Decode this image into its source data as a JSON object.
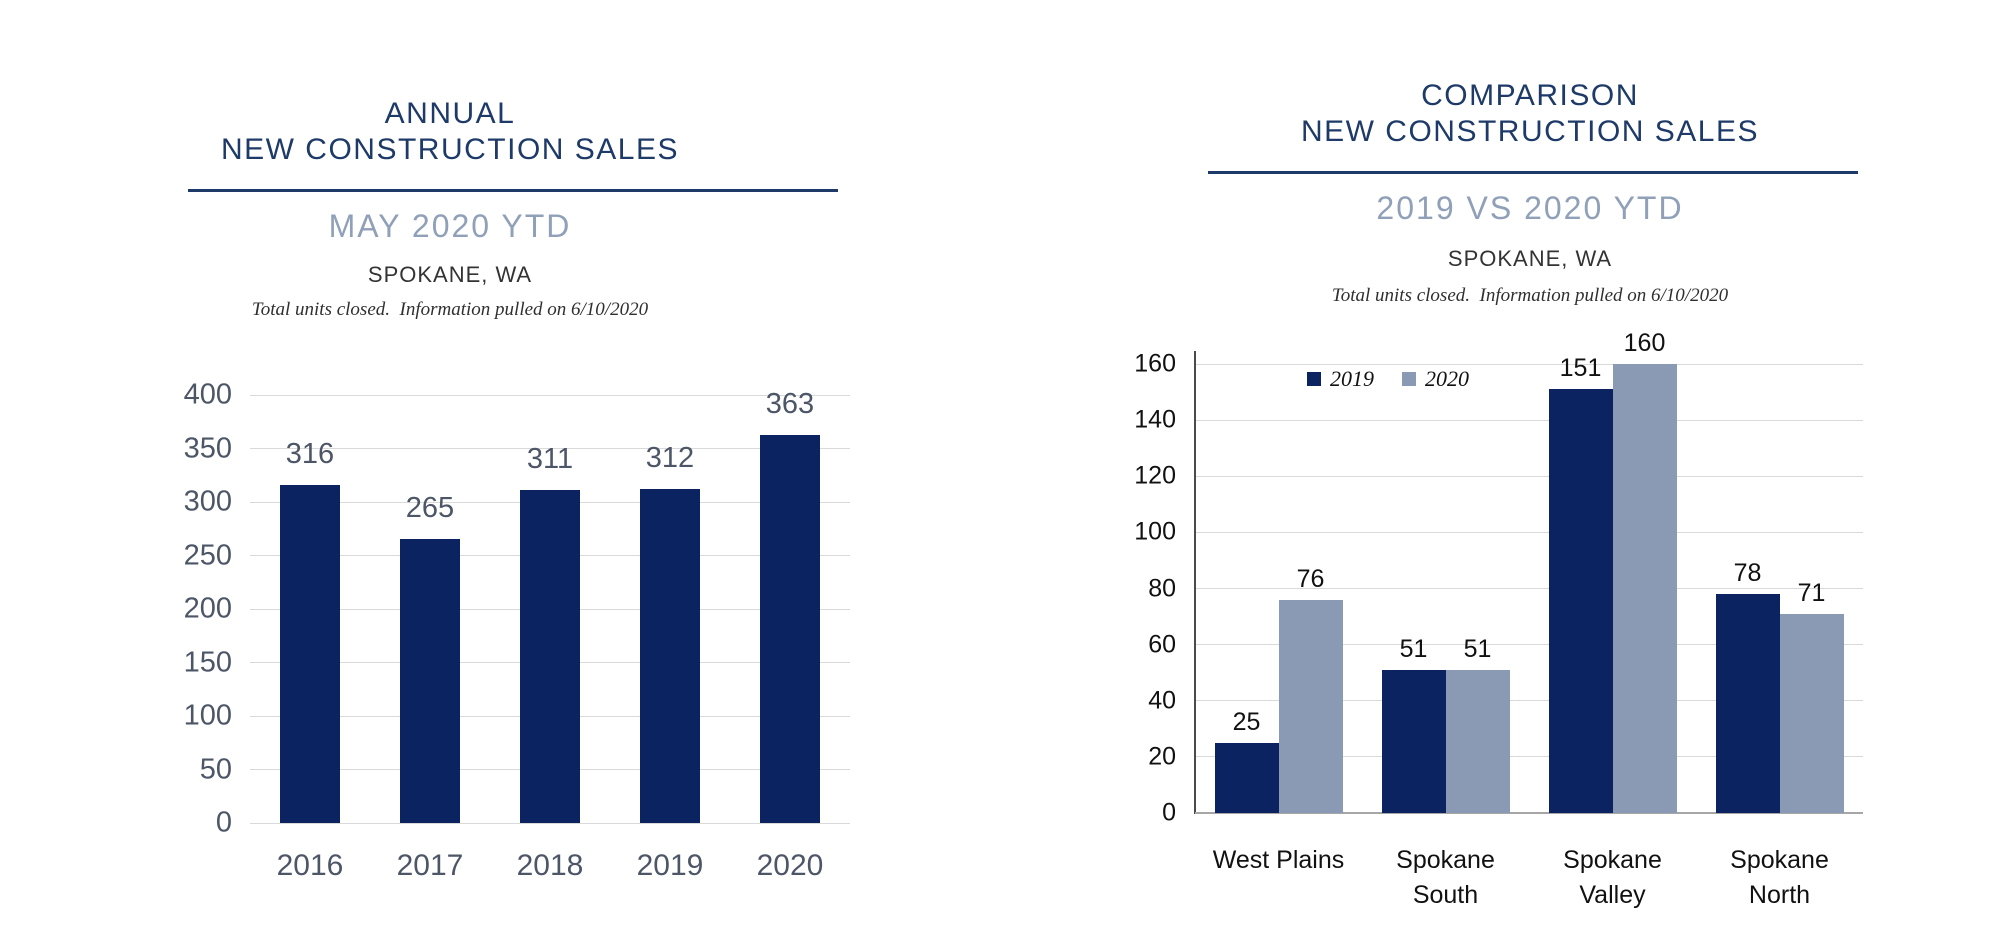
{
  "colors": {
    "bar_navy": "#0B2361",
    "bar_slate": "#8A9AB5",
    "title_navy": "#1E3A68",
    "subtitle_slate": "#8FA0B8",
    "left_axis_text": "#4D5667",
    "right_axis_text": "#111111",
    "gridline": "#D9D9D9"
  },
  "chart_data": [
    {
      "id": "annual-new-construction-sales",
      "type": "bar",
      "header": {
        "title_line1": "ANNUAL",
        "title_line2": "NEW CONSTRUCTION SALES",
        "subtitle": "MAY 2020 YTD",
        "location": "SPOKANE, WA",
        "note": "Total units closed.  Information pulled on 6/10/2020"
      },
      "categories": [
        "2016",
        "2017",
        "2018",
        "2019",
        "2020"
      ],
      "values": [
        316,
        265,
        311,
        312,
        363
      ],
      "ylim": [
        0,
        400
      ],
      "ytick_step": 50,
      "grid": true,
      "data_labels": true,
      "bar_color": "#0B2361",
      "legend": null
    },
    {
      "id": "comparison-new-construction-sales",
      "type": "bar",
      "header": {
        "title_line1": "COMPARISON",
        "title_line2": "NEW CONSTRUCTION SALES",
        "subtitle": "2019 VS 2020 YTD",
        "location": "SPOKANE, WA",
        "note": "Total units closed.  Information pulled on 6/10/2020"
      },
      "categories": [
        "West Plains",
        "Spokane\nSouth",
        "Spokane\nValley",
        "Spokane\nNorth"
      ],
      "series": [
        {
          "name": "2019",
          "values": [
            25,
            51,
            151,
            78
          ],
          "color": "#0B2361"
        },
        {
          "name": "2020",
          "values": [
            76,
            51,
            160,
            71
          ],
          "color": "#8A9AB5"
        }
      ],
      "ylim": [
        0,
        160
      ],
      "ytick_step": 20,
      "grid": true,
      "data_labels": true,
      "legend": {
        "position": "top-inside",
        "entries": [
          "2019",
          "2020"
        ]
      }
    }
  ]
}
